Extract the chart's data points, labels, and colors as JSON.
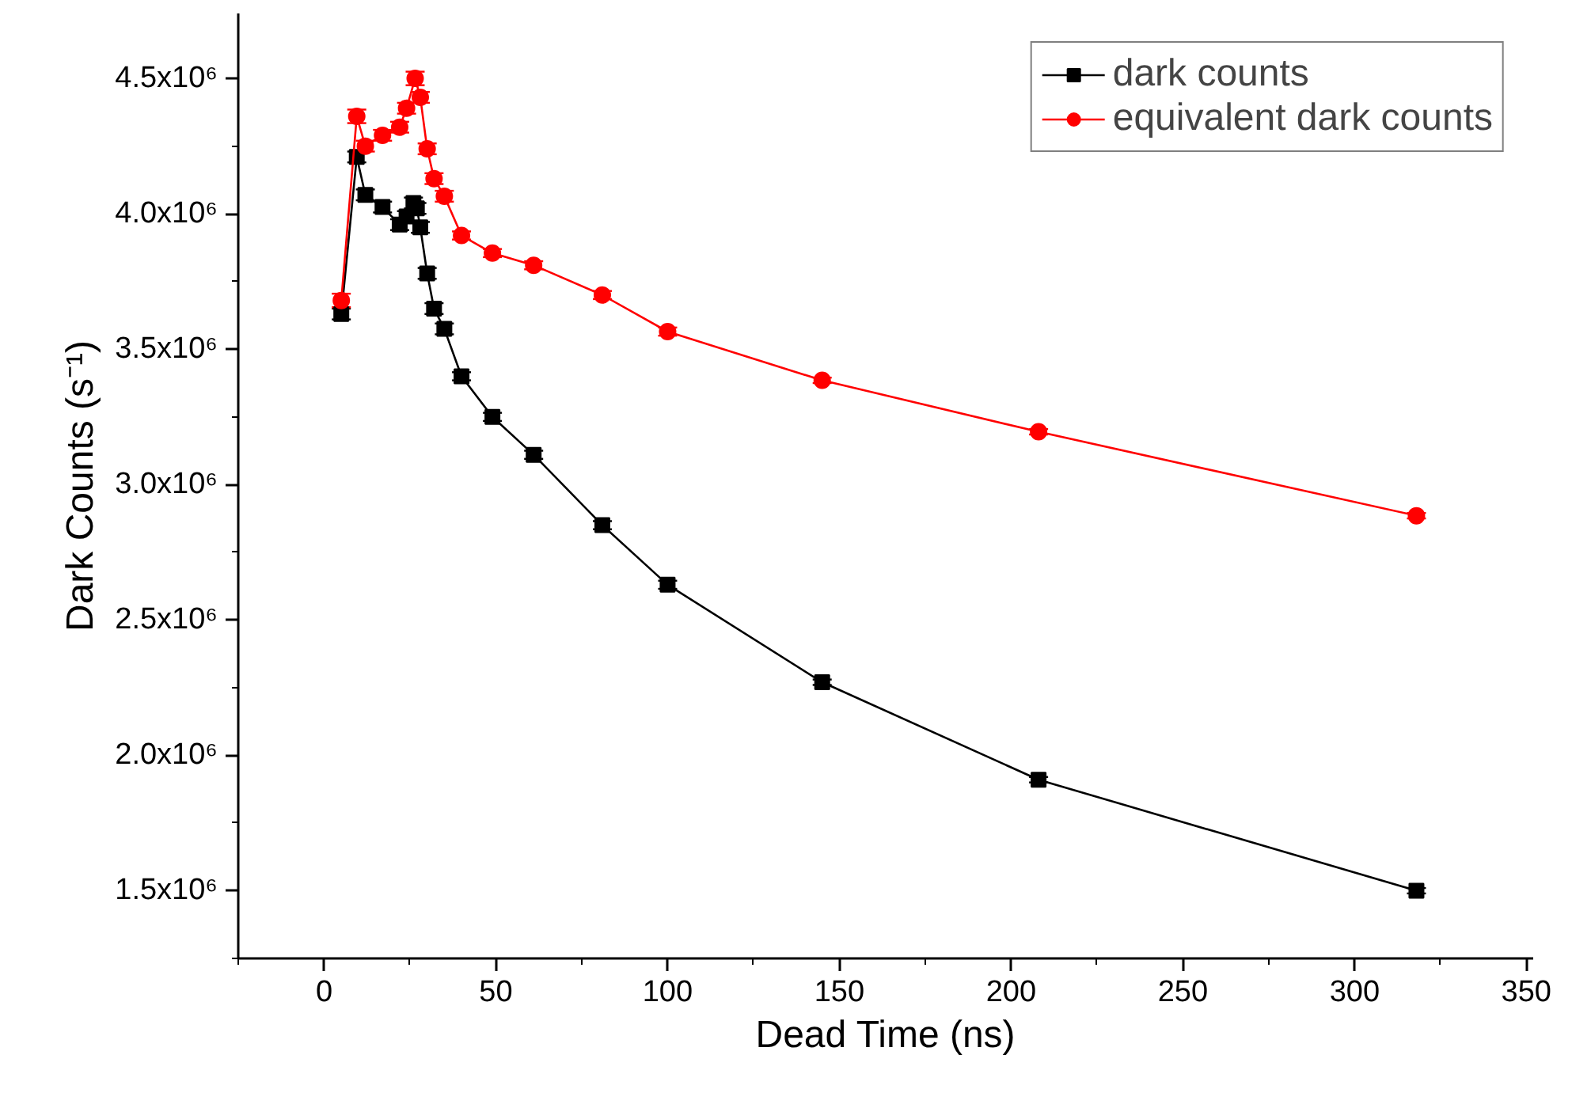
{
  "chart_data": {
    "type": "line",
    "xlabel": "Dead Time (ns)",
    "ylabel": "Dark Counts (s⁻¹)",
    "x": [
      5,
      9.5,
      12,
      17,
      22,
      24,
      26,
      27,
      28,
      30,
      32,
      35,
      40,
      49,
      61,
      81,
      100,
      145,
      208,
      318
    ],
    "series": [
      {
        "name": "dark counts",
        "color": "#000000",
        "marker": "square",
        "values": [
          3630000,
          4210000,
          4070000,
          4025000,
          3960000,
          3990000,
          4040000,
          4020000,
          3950000,
          3780000,
          3650000,
          3575000,
          3400000,
          3250000,
          3110000,
          2850000,
          2630000,
          2270000,
          1910000,
          1500000
        ],
        "errors": [
          20000,
          20000,
          20000,
          20000,
          20000,
          20000,
          20000,
          20000,
          20000,
          20000,
          20000,
          20000,
          15000,
          15000,
          15000,
          15000,
          15000,
          10000,
          10000,
          10000
        ]
      },
      {
        "name": "equivalent dark counts",
        "color": "#ff0000",
        "marker": "circle",
        "x": [
          5,
          9.5,
          12,
          17,
          22,
          24,
          26.5,
          28,
          30,
          32,
          35,
          40,
          49,
          61,
          81,
          100,
          145,
          208,
          318
        ],
        "values": [
          3680000,
          4360000,
          4250000,
          4290000,
          4320000,
          4390000,
          4500000,
          4430000,
          4240000,
          4130000,
          4065000,
          3920000,
          3855000,
          3810000,
          3700000,
          3565000,
          3385000,
          3195000,
          2885000
        ],
        "errors": [
          25000,
          25000,
          20000,
          20000,
          20000,
          20000,
          25000,
          20000,
          20000,
          20000,
          20000,
          15000,
          15000,
          15000,
          15000,
          15000,
          10000,
          10000,
          10000
        ]
      }
    ],
    "xlim": [
      -25,
      352
    ],
    "ylim": [
      1250000,
      4740000
    ],
    "xticks": [
      0,
      50,
      100,
      150,
      200,
      250,
      300,
      350
    ],
    "yticks": [
      {
        "value": 1500000,
        "label": "1.5x10⁶"
      },
      {
        "value": 2000000,
        "label": "2.0x10⁶"
      },
      {
        "value": 2500000,
        "label": "2.5x10⁶"
      },
      {
        "value": 3000000,
        "label": "3.0x10⁶"
      },
      {
        "value": 3500000,
        "label": "3.5x10⁶"
      },
      {
        "value": 4000000,
        "label": "4.0x10⁶"
      },
      {
        "value": 4500000,
        "label": "4.5x10⁶"
      }
    ],
    "grid": false,
    "legend": "top right",
    "line_style": "solid"
  }
}
